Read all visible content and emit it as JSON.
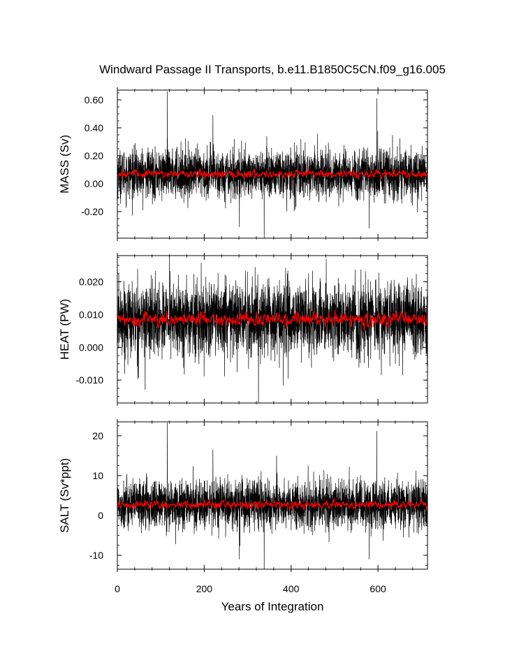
{
  "chart_data": {
    "type": "line",
    "title": "Windward Passage II Transports, b.e11.B1850C5CN.f09_g16.005",
    "xlabel": "Years of Integration",
    "xlim": [
      0,
      714
    ],
    "x_ticks": [
      0,
      200,
      400,
      600
    ],
    "x_tick_labels": [
      "0",
      "200",
      "400",
      "600"
    ],
    "series_colors": {
      "monthly": "#000000",
      "annual": "#ff0000"
    },
    "panels": [
      {
        "id": "mass",
        "ylabel": "MASS (Sv)",
        "ylim": [
          -0.39,
          0.67
        ],
        "y_ticks": [
          0.6,
          0.4,
          0.2,
          0.0,
          -0.2
        ],
        "y_tick_labels": [
          "0.60",
          "0.40",
          "0.20",
          "0.00",
          "-0.20"
        ],
        "monthly_mean": 0.07,
        "monthly_spread": 0.085,
        "annual_mean": 0.07,
        "annual_spread": 0.013,
        "spikes": [
          [
            115,
            0.66
          ],
          [
            220,
            0.49
          ],
          [
            597,
            0.61
          ],
          [
            338,
            -0.39
          ],
          [
            281,
            -0.31
          ],
          [
            580,
            -0.32
          ]
        ]
      },
      {
        "id": "heat",
        "ylabel": "HEAT (PW)",
        "ylim": [
          -0.017,
          0.028
        ],
        "y_ticks": [
          0.02,
          0.01,
          0.0,
          -0.01
        ],
        "y_tick_labels": [
          "0.020",
          "0.010",
          "0.000",
          "-0.010"
        ],
        "monthly_mean": 0.0085,
        "monthly_spread": 0.0055,
        "annual_mean": 0.0085,
        "annual_spread": 0.001,
        "spikes": [
          [
            325,
            -0.017
          ],
          [
            120,
            0.028
          ],
          [
            481,
            0.027
          ],
          [
            64,
            -0.013
          ]
        ]
      },
      {
        "id": "salt",
        "ylabel": "SALT (Sv*ppt)",
        "ylim": [
          -13.5,
          23.5
        ],
        "y_ticks": [
          20,
          10,
          0,
          -10
        ],
        "y_tick_labels": [
          "20",
          "10",
          "0",
          "-10"
        ],
        "monthly_mean": 2.7,
        "monthly_spread": 3.0,
        "annual_mean": 2.7,
        "annual_spread": 0.45,
        "spikes": [
          [
            115,
            23.3
          ],
          [
            220,
            16.5
          ],
          [
            597,
            21.2
          ],
          [
            338,
            -13.5
          ],
          [
            281,
            -11
          ],
          [
            580,
            -11
          ]
        ]
      }
    ]
  }
}
